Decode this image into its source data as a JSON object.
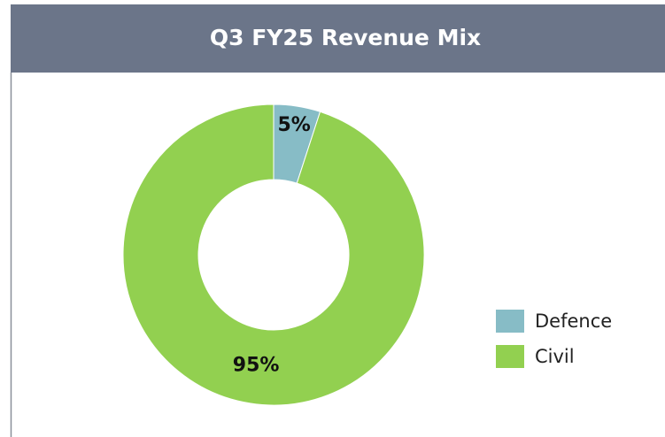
{
  "chart_data": {
    "type": "donut",
    "title": "Q3 FY25 Revenue Mix",
    "categories": [
      "Defence",
      "Civil"
    ],
    "values": [
      5,
      95
    ],
    "value_labels": [
      "5%",
      "95%"
    ],
    "colors": [
      "#87bcc6",
      "#92d050"
    ],
    "legend": "right"
  }
}
